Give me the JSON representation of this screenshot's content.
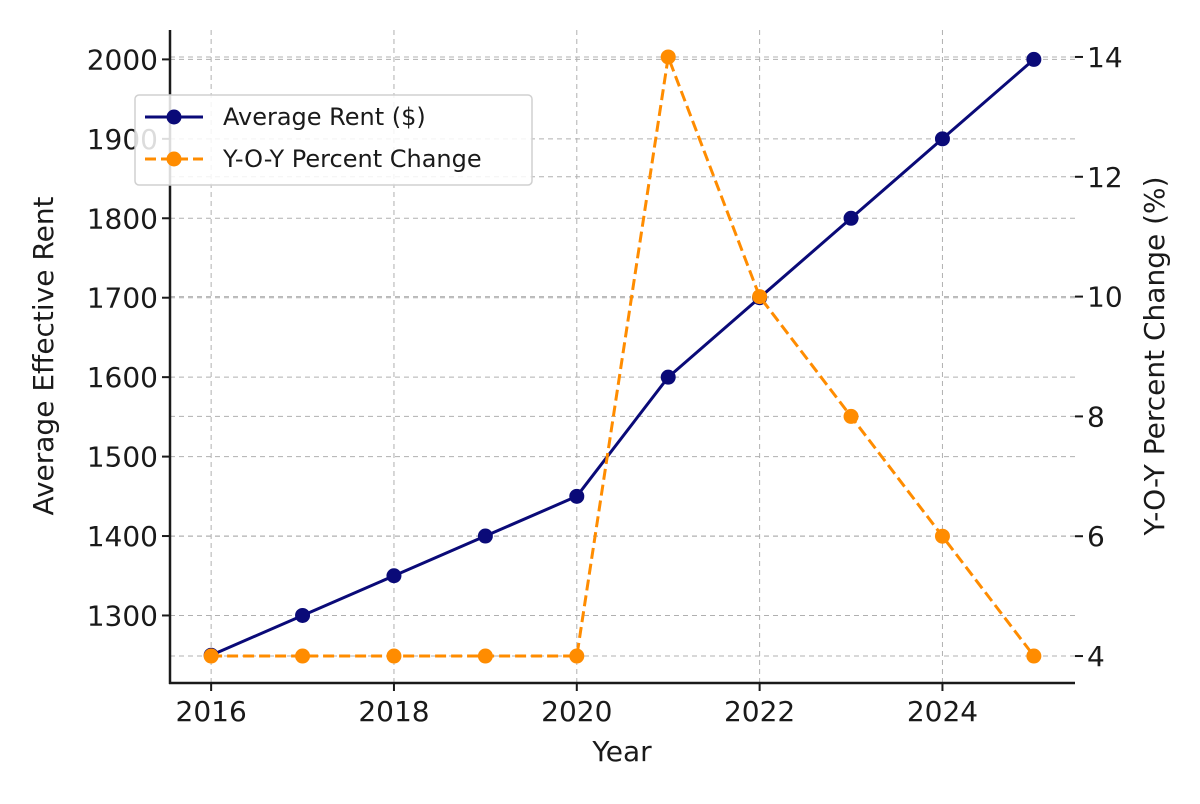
{
  "chart_data": {
    "type": "line",
    "title": "",
    "xlabel": "Year",
    "ylabel": "Average Effective Rent",
    "y2label": "Y-O-Y Percent Change (%)",
    "x": [
      2016,
      2017,
      2018,
      2019,
      2020,
      2021,
      2022,
      2023,
      2024,
      2025
    ],
    "xlim": [
      2015.55,
      2025.45
    ],
    "ylim": [
      1215,
      2037
    ],
    "y2lim": [
      3.55,
      14.45
    ],
    "x_ticks": [
      2016,
      2018,
      2020,
      2022,
      2024
    ],
    "x_tick_labels": [
      "2016",
      "2018",
      "2020",
      "2022",
      "2024"
    ],
    "y_ticks": [
      1300,
      1400,
      1500,
      1600,
      1700,
      1800,
      1900,
      2000
    ],
    "y_tick_labels": [
      "1300",
      "1400",
      "1500",
      "1600",
      "1700",
      "1800",
      "1900",
      "2000"
    ],
    "y2_ticks": [
      4,
      6,
      8,
      10,
      12,
      14
    ],
    "y2_tick_labels": [
      "4",
      "6",
      "8",
      "10",
      "12",
      "14"
    ],
    "grid": true,
    "legend_position": "upper-left",
    "series": [
      {
        "name": "Average Rent ($)",
        "axis": "left",
        "values": [
          1250,
          1300,
          1350,
          1400,
          1450,
          1600,
          1700,
          1800,
          1900,
          2000
        ],
        "color": "#0a0a78",
        "line_style": "solid",
        "marker": "circle"
      },
      {
        "name": "Y-O-Y Percent Change",
        "axis": "right",
        "values": [
          4,
          4,
          4,
          4,
          4,
          14,
          10,
          8,
          6,
          4
        ],
        "color": "#ff8c00",
        "line_style": "dashed",
        "marker": "circle"
      }
    ]
  }
}
